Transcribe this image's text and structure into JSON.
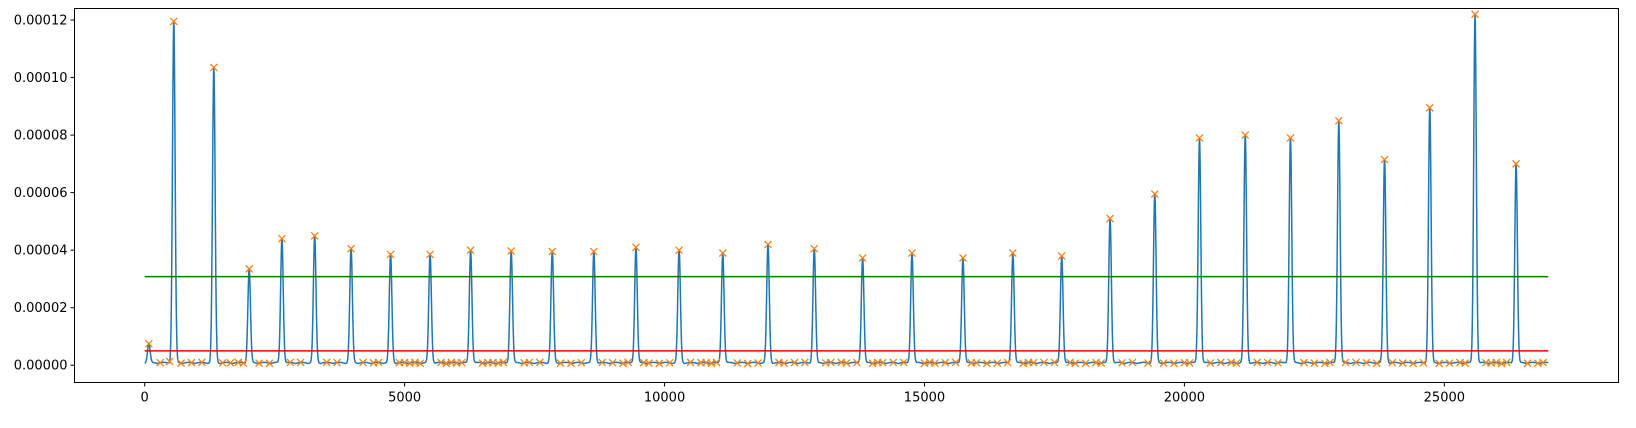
{
  "chart_data": {
    "type": "line",
    "title": "",
    "xlabel": "",
    "ylabel": "",
    "xlim": [
      -1350,
      28350
    ],
    "ylim": [
      -6e-06,
      0.000124
    ],
    "xticks": [
      0,
      5000,
      10000,
      15000,
      20000,
      25000
    ],
    "xtick_labels": [
      "0",
      "5000",
      "10000",
      "15000",
      "20000",
      "25000"
    ],
    "yticks": [
      0,
      2e-05,
      4e-05,
      6e-05,
      8e-05,
      0.0001,
      0.00012
    ],
    "ytick_labels": [
      "0.00000",
      "0.00002",
      "0.00004",
      "0.00006",
      "0.00008",
      "0.00010",
      "0.00012"
    ],
    "grid": false,
    "peaks": [
      {
        "x": 80,
        "y": 7.5e-06
      },
      {
        "x": 560,
        "y": 0.0001195
      },
      {
        "x": 1330,
        "y": 0.0001035
      },
      {
        "x": 2010,
        "y": 3.35e-05
      },
      {
        "x": 2640,
        "y": 4.4e-05
      },
      {
        "x": 3270,
        "y": 4.5e-05
      },
      {
        "x": 3970,
        "y": 4.05e-05
      },
      {
        "x": 4730,
        "y": 3.85e-05
      },
      {
        "x": 5490,
        "y": 3.85e-05
      },
      {
        "x": 6270,
        "y": 4e-05
      },
      {
        "x": 7050,
        "y": 3.97e-05
      },
      {
        "x": 7840,
        "y": 3.95e-05
      },
      {
        "x": 8640,
        "y": 3.95e-05
      },
      {
        "x": 9450,
        "y": 4.1e-05
      },
      {
        "x": 10280,
        "y": 4e-05
      },
      {
        "x": 11120,
        "y": 3.9e-05
      },
      {
        "x": 11990,
        "y": 4.2e-05
      },
      {
        "x": 12880,
        "y": 4.05e-05
      },
      {
        "x": 13810,
        "y": 3.73e-05
      },
      {
        "x": 14760,
        "y": 3.9e-05
      },
      {
        "x": 15740,
        "y": 3.73e-05
      },
      {
        "x": 16700,
        "y": 3.9e-05
      },
      {
        "x": 17640,
        "y": 3.8e-05
      },
      {
        "x": 18570,
        "y": 5.1e-05
      },
      {
        "x": 19430,
        "y": 5.95e-05
      },
      {
        "x": 20290,
        "y": 7.9e-05
      },
      {
        "x": 21170,
        "y": 8e-05
      },
      {
        "x": 22040,
        "y": 7.9e-05
      },
      {
        "x": 22970,
        "y": 8.5e-05
      },
      {
        "x": 23850,
        "y": 7.15e-05
      },
      {
        "x": 24720,
        "y": 8.95e-05
      },
      {
        "x": 25590,
        "y": 0.000122
      },
      {
        "x": 26380,
        "y": 7e-05
      }
    ],
    "series": [
      {
        "type": "line",
        "color": "#1f77b4",
        "kind": "signal"
      },
      {
        "type": "scatter",
        "marker": "x",
        "color": "#ff7f0e",
        "kind": "detected-peaks"
      },
      {
        "type": "hline",
        "color": "#008000",
        "y": 3.08e-05,
        "x": [
          0,
          27000
        ]
      },
      {
        "type": "hline",
        "color": "#ff0000",
        "y": 5e-06,
        "x": [
          0,
          27000
        ]
      }
    ],
    "baseline_markers_x": [
      300,
      480,
      700,
      900,
      1100,
      1500,
      1650,
      1800,
      1900,
      2200,
      2400,
      2800,
      3000,
      3500,
      3700,
      4200,
      4400,
      4500,
      4900,
      5000,
      5100,
      5200,
      5300,
      5700,
      5800,
      5900,
      6000,
      6100,
      6500,
      6600,
      6700,
      6800,
      6900,
      7300,
      7400,
      7600,
      8000,
      8200,
      8400,
      8800,
      9000,
      9200,
      9300,
      9600,
      9700,
      9900,
      10100,
      10500,
      10700,
      10800,
      10900,
      11000,
      11400,
      11600,
      11800,
      12200,
      12300,
      12500,
      12700,
      13100,
      13200,
      13400,
      13500,
      13700,
      14000,
      14100,
      14200,
      14400,
      14600,
      15000,
      15100,
      15200,
      15400,
      15600,
      15900,
      16000,
      16200,
      16400,
      16600,
      16900,
      17000,
      17100,
      17300,
      17500,
      17800,
      17900,
      18100,
      18300,
      18400,
      18800,
      19000,
      19300,
      19600,
      19800,
      20000,
      20100,
      20500,
      20700,
      20900,
      21000,
      21400,
      21600,
      21800,
      22300,
      22500,
      22700,
      22800,
      23100,
      23300,
      23500,
      23700,
      24000,
      24200,
      24400,
      24600,
      24900,
      25100,
      25300,
      25400,
      25800,
      25900,
      26000,
      26100,
      26200,
      26600,
      26800,
      26900
    ]
  }
}
